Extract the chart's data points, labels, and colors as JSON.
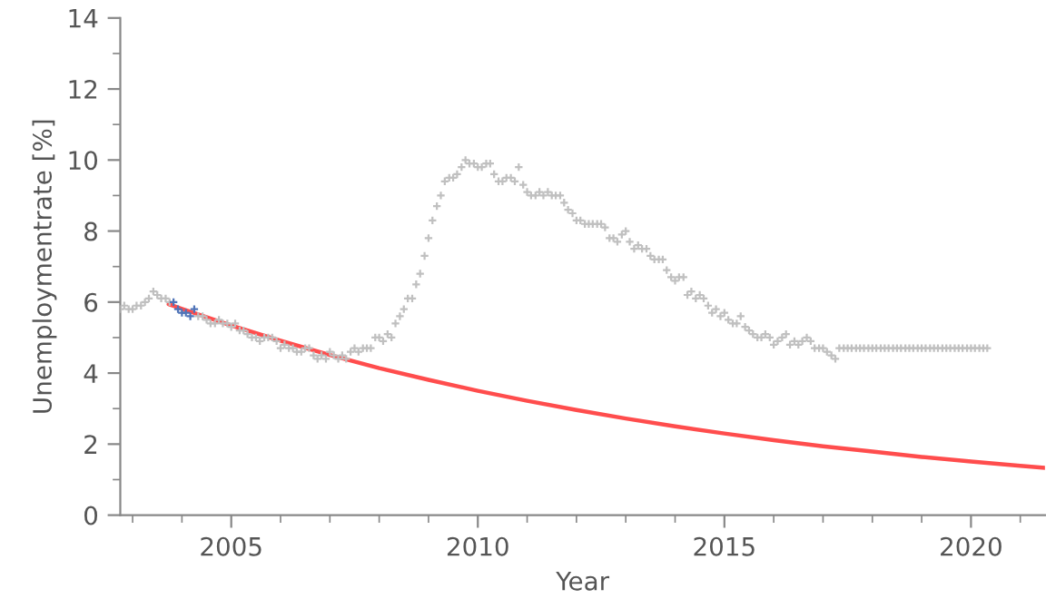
{
  "chart_data": {
    "type": "scatter",
    "xlabel": "Year",
    "ylabel": "Unemploymentrate [%]",
    "xlim": [
      2002.75,
      2021.5
    ],
    "xticks": [
      2005,
      2010,
      2015,
      2020
    ],
    "ylim": [
      0,
      14
    ],
    "yticks": [
      0,
      2,
      4,
      6,
      8,
      10,
      12,
      14
    ],
    "grid": false,
    "legend": false,
    "marker": "cross",
    "series": [
      {
        "color": "#c0c0c0",
        "x": [
          2002.75,
          2002.83,
          2002.92,
          2003.0,
          2003.08,
          2003.17,
          2003.25,
          2003.33,
          2003.42,
          2003.5,
          2003.58,
          2003.67,
          2003.75,
          2004.33,
          2004.42,
          2004.5,
          2004.58,
          2004.67,
          2004.75,
          2004.83,
          2004.92,
          2005.0,
          2005.08,
          2005.17,
          2005.25,
          2005.33,
          2005.42,
          2005.5,
          2005.58,
          2005.67,
          2005.75,
          2005.83,
          2005.92,
          2006.0,
          2006.08,
          2006.17,
          2006.25,
          2006.33,
          2006.42,
          2006.5,
          2006.58,
          2006.67,
          2006.75,
          2006.83,
          2006.92,
          2007.0,
          2007.08,
          2007.17,
          2007.25,
          2007.33,
          2007.42,
          2007.5,
          2007.58,
          2007.67,
          2007.75,
          2007.83,
          2007.92,
          2008.0,
          2008.08,
          2008.17,
          2008.25,
          2008.33,
          2008.42,
          2008.5,
          2008.58,
          2008.67,
          2008.75,
          2008.83,
          2008.92,
          2009.0,
          2009.08,
          2009.17,
          2009.25,
          2009.33,
          2009.42,
          2009.5,
          2009.58,
          2009.67,
          2009.75,
          2009.83,
          2009.92,
          2010.0,
          2010.08,
          2010.17,
          2010.25,
          2010.33,
          2010.42,
          2010.5,
          2010.58,
          2010.67,
          2010.75,
          2010.83,
          2010.92,
          2011.0,
          2011.08,
          2011.17,
          2011.25,
          2011.33,
          2011.42,
          2011.5,
          2011.58,
          2011.67,
          2011.75,
          2011.83,
          2011.92,
          2012.0,
          2012.08,
          2012.17,
          2012.25,
          2012.33,
          2012.42,
          2012.5,
          2012.58,
          2012.67,
          2012.75,
          2012.83,
          2012.92,
          2013.0,
          2013.08,
          2013.17,
          2013.25,
          2013.33,
          2013.42,
          2013.5,
          2013.58,
          2013.67,
          2013.75,
          2013.83,
          2013.92,
          2014.0,
          2014.08,
          2014.17,
          2014.25,
          2014.33,
          2014.42,
          2014.5,
          2014.58,
          2014.67,
          2014.75,
          2014.83,
          2014.92,
          2015.0,
          2015.08,
          2015.17,
          2015.25,
          2015.33,
          2015.42,
          2015.5,
          2015.58,
          2015.67,
          2015.75,
          2015.83,
          2015.92,
          2016.0,
          2016.08,
          2016.17,
          2016.25,
          2016.33,
          2016.42,
          2016.5,
          2016.58,
          2016.67,
          2016.75,
          2016.83,
          2016.92,
          2017.0,
          2017.08,
          2017.17,
          2017.25,
          2017.33,
          2017.42,
          2017.5,
          2017.58,
          2017.67,
          2017.75,
          2017.83,
          2017.92,
          2018.0,
          2018.08,
          2018.17,
          2018.25,
          2018.33,
          2018.42,
          2018.5,
          2018.58,
          2018.67,
          2018.75,
          2018.83,
          2018.92,
          2019.0,
          2019.08,
          2019.17,
          2019.25,
          2019.33,
          2019.42,
          2019.5,
          2019.58,
          2019.67,
          2019.75,
          2019.83,
          2019.92,
          2020.0,
          2020.08,
          2020.17,
          2020.25,
          2020.33
        ],
        "values": [
          5.8,
          5.9,
          5.8,
          5.8,
          5.9,
          5.9,
          6.0,
          6.1,
          6.3,
          6.2,
          6.1,
          6.1,
          6.0,
          5.6,
          5.6,
          5.5,
          5.4,
          5.4,
          5.5,
          5.4,
          5.4,
          5.3,
          5.4,
          5.2,
          5.2,
          5.1,
          5.0,
          5.0,
          4.9,
          5.0,
          5.0,
          5.0,
          4.9,
          4.7,
          4.8,
          4.7,
          4.7,
          4.6,
          4.6,
          4.7,
          4.7,
          4.5,
          4.4,
          4.5,
          4.4,
          4.6,
          4.5,
          4.4,
          4.5,
          4.4,
          4.6,
          4.7,
          4.6,
          4.7,
          4.7,
          4.7,
          5.0,
          5.0,
          4.9,
          5.1,
          5.0,
          5.4,
          5.6,
          5.8,
          6.1,
          6.1,
          6.5,
          6.8,
          7.3,
          7.8,
          8.3,
          8.7,
          9.0,
          9.4,
          9.5,
          9.5,
          9.6,
          9.8,
          10.0,
          9.9,
          9.9,
          9.8,
          9.8,
          9.9,
          9.9,
          9.6,
          9.4,
          9.4,
          9.5,
          9.5,
          9.4,
          9.8,
          9.3,
          9.1,
          9.0,
          9.0,
          9.1,
          9.0,
          9.1,
          9.0,
          9.0,
          9.0,
          8.8,
          8.6,
          8.5,
          8.3,
          8.3,
          8.2,
          8.2,
          8.2,
          8.2,
          8.2,
          8.1,
          7.8,
          7.8,
          7.7,
          7.9,
          8.0,
          7.7,
          7.5,
          7.6,
          7.5,
          7.5,
          7.3,
          7.2,
          7.2,
          7.2,
          6.9,
          6.7,
          6.6,
          6.7,
          6.7,
          6.2,
          6.3,
          6.1,
          6.2,
          6.1,
          5.9,
          5.7,
          5.8,
          5.6,
          5.7,
          5.5,
          5.4,
          5.4,
          5.6,
          5.3,
          5.2,
          5.1,
          5.0,
          5.0,
          5.1,
          5.0,
          4.8,
          4.9,
          5.0,
          5.1,
          4.8,
          4.9,
          4.8,
          4.9,
          5.0,
          4.9,
          4.7,
          4.7,
          4.7,
          4.6,
          4.5,
          4.4,
          4.7,
          4.7,
          4.7,
          4.7,
          4.7,
          4.7,
          4.7,
          4.7,
          4.7,
          4.7,
          4.7,
          4.7,
          4.7,
          4.7,
          4.7,
          4.7,
          4.7,
          4.7,
          4.7,
          4.7,
          4.7,
          4.7,
          4.7,
          4.7,
          4.7,
          4.7,
          4.7,
          4.7,
          4.7,
          4.7,
          4.7,
          4.7,
          4.7,
          4.7,
          4.7,
          4.7,
          4.7
        ]
      },
      {
        "type": "line",
        "color": "#ff4d4d",
        "marker": "none",
        "x": [
          2003.73,
          2004,
          2005,
          2006,
          2007,
          2008,
          2009,
          2010,
          2011,
          2012,
          2013,
          2014,
          2015,
          2016,
          2017,
          2018,
          2019,
          2020,
          2021,
          2021.5
        ],
        "values": [
          5.94,
          5.81,
          5.34,
          4.91,
          4.51,
          4.14,
          3.81,
          3.5,
          3.22,
          2.96,
          2.72,
          2.5,
          2.3,
          2.11,
          1.94,
          1.79,
          1.64,
          1.51,
          1.39,
          1.33
        ]
      },
      {
        "color": "#4f74b8",
        "x": [
          2003.83,
          2003.92,
          2004.0,
          2004.08,
          2004.17,
          2004.25
        ],
        "values": [
          6.0,
          5.8,
          5.7,
          5.7,
          5.6,
          5.8
        ]
      }
    ]
  }
}
